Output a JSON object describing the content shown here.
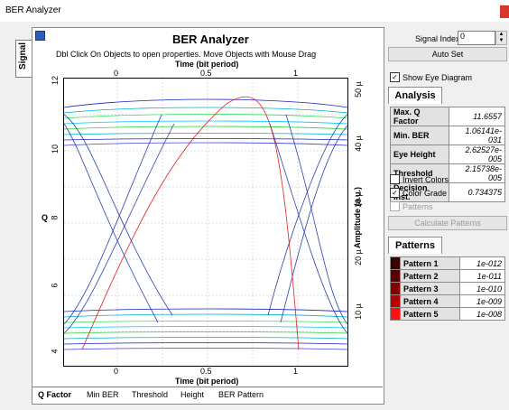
{
  "window": {
    "title": "BER Analyzer"
  },
  "side_tab": {
    "label": "Signal"
  },
  "header": {
    "title": "BER Analyzer",
    "hint": "Dbl Click On Objects to open properties.  Move Objects with Mouse Drag",
    "top_axis_label": "Time (bit period)",
    "bottom_axis_label": "Time (bit period)",
    "left_axis_label": "Q",
    "right_axis_label": "Amplitude (a.u.)"
  },
  "axes": {
    "top_ticks": [
      "0",
      "0.5",
      "1"
    ],
    "bottom_ticks": [
      "0",
      "0.5",
      "1"
    ],
    "left_ticks": [
      "12",
      "10",
      "8",
      "6",
      "4"
    ],
    "right_ticks": [
      "50 µ",
      "40 µ",
      "30 µ",
      "20 µ",
      "10 µ"
    ]
  },
  "bottom_tabs": [
    "Q Factor",
    "Min BER",
    "Threshold",
    "Height",
    "BER Pattern"
  ],
  "right_panel": {
    "signal_index_label": "Signal Index",
    "signal_index_value": "0",
    "auto_set_label": "Auto Set",
    "show_eye_label": "Show Eye Diagram",
    "show_eye_checked": "✓",
    "analysis_tab": "Analysis",
    "analysis": [
      {
        "key": "Max. Q Factor",
        "value": "11.6557"
      },
      {
        "key": "Min. BER",
        "value": "1.06141e-031"
      },
      {
        "key": "Eye Height",
        "value": "2.62527e-005"
      },
      {
        "key": "Threshold",
        "value": "2.15738e-005"
      },
      {
        "key": "Decision Inst.",
        "value": "0.734375"
      }
    ],
    "invert_colors_label": "Invert Colors",
    "color_grade_label": "Color Grade",
    "color_grade_checked": "✓",
    "patterns_label": "Patterns",
    "calculate_label": "Calculate Patterns",
    "patterns_tab": "Patterns",
    "patterns": [
      {
        "name": "Pattern 1",
        "value": "1e-012",
        "color": "#3a0000"
      },
      {
        "name": "Pattern 2",
        "value": "1e-011",
        "color": "#5e0000"
      },
      {
        "name": "Pattern 3",
        "value": "1e-010",
        "color": "#860000"
      },
      {
        "name": "Pattern 4",
        "value": "1e-009",
        "color": "#b80000"
      },
      {
        "name": "Pattern 5",
        "value": "1e-008",
        "color": "#ff1010"
      }
    ]
  }
}
